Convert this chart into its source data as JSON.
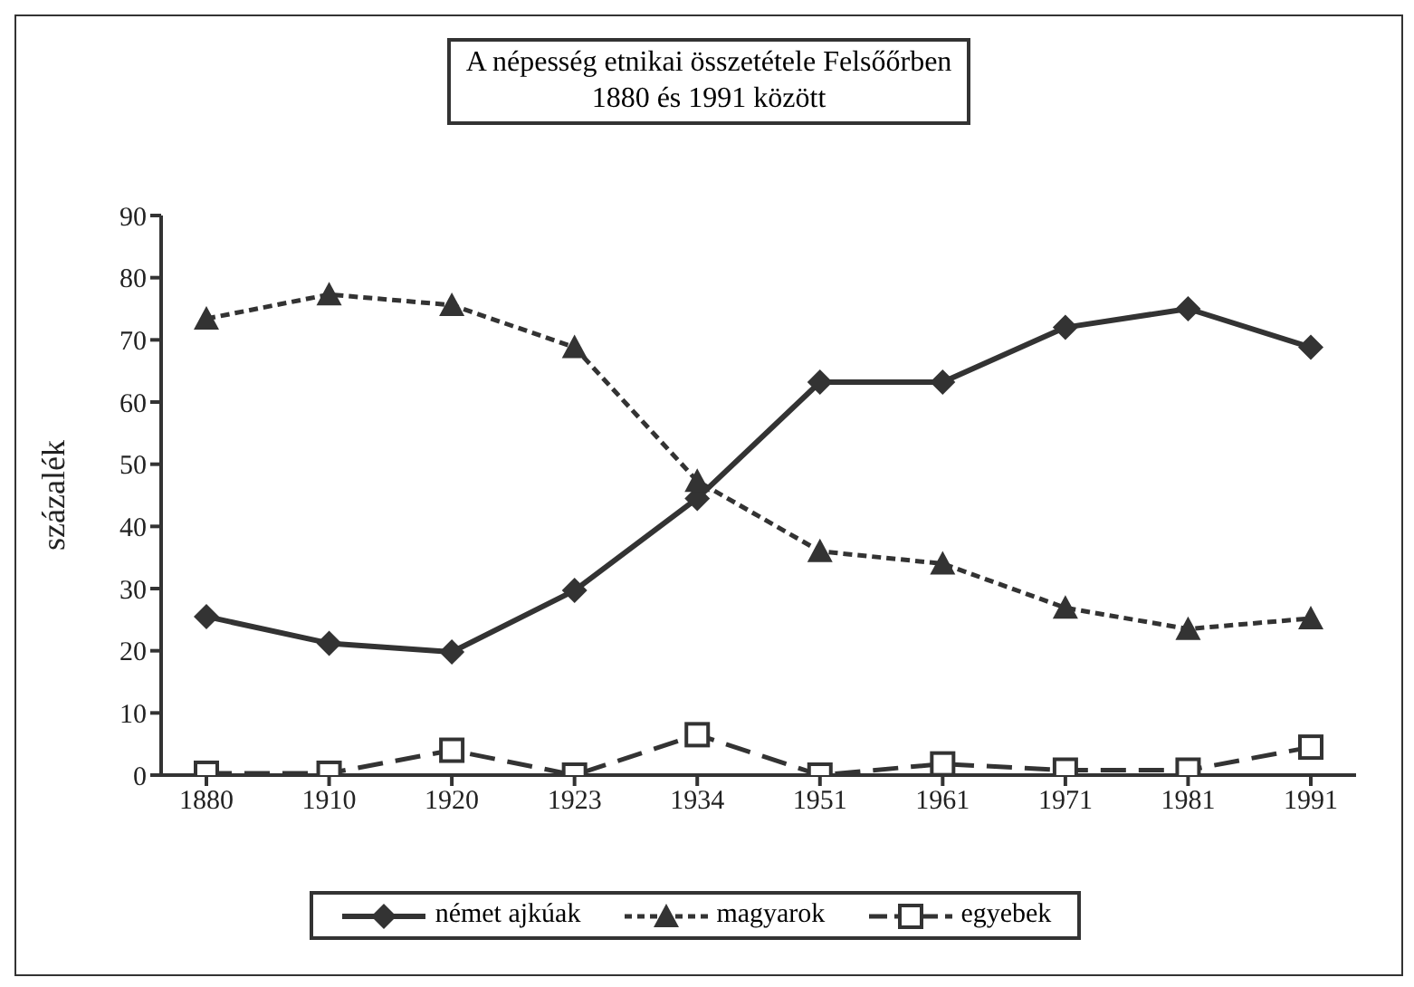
{
  "chart_data": {
    "type": "line",
    "title": "A népesség etnikai összetétele Felsőőrben\n1880 és 1991 között",
    "ylabel": "százalék",
    "categories": [
      "1880",
      "1910",
      "1920",
      "1923",
      "1934",
      "1951",
      "1961",
      "1971",
      "1981",
      "1991"
    ],
    "series": [
      {
        "name": "német ajkúak",
        "color": "#333333",
        "marker": "diamond",
        "line_style": "solid",
        "values": [
          25.5,
          21.2,
          19.8,
          29.7,
          44.5,
          63.2,
          63.2,
          72,
          75,
          68.8
        ]
      },
      {
        "name": "magyarok",
        "color": "#333333",
        "marker": "triangle",
        "line_style": "dotted",
        "values": [
          73.4,
          77.3,
          75.6,
          68.8,
          47.3,
          36,
          34,
          26.9,
          23.5,
          25.2
        ]
      },
      {
        "name": "egyebek",
        "color": "#333333",
        "marker": "square",
        "line_style": "dashed",
        "values": [
          0.3,
          0.3,
          4,
          0,
          6.5,
          0,
          1.8,
          0.8,
          0.8,
          4.5
        ]
      }
    ],
    "ylim": [
      0,
      90
    ],
    "yticks": [
      0,
      10,
      20,
      30,
      40,
      50,
      60,
      70,
      80,
      90
    ],
    "grid": false,
    "legend": "bottom"
  }
}
